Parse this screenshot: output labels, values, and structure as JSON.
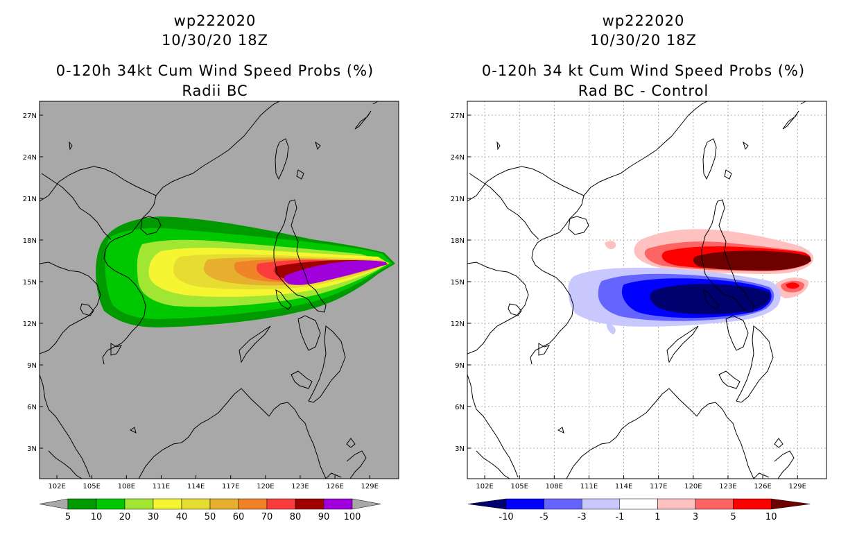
{
  "left_panel": {
    "storm_id": "wp222020",
    "datetime": "10/30/20 18Z",
    "title": "0-120h 34kt Cum Wind Speed Probs (%)",
    "subtitle": "Radii BC",
    "colorbar": {
      "labels": [
        "5",
        "10",
        "20",
        "30",
        "40",
        "50",
        "60",
        "70",
        "80",
        "90",
        "100"
      ],
      "colors": [
        "#009a00",
        "#00c800",
        "#a0e632",
        "#f5f532",
        "#e6dc32",
        "#e6af2d",
        "#f08228",
        "#fa3c3c",
        "#a00000",
        "#a000dc"
      ]
    }
  },
  "right_panel": {
    "storm_id": "wp222020",
    "datetime": "10/30/20 18Z",
    "title": "0-120h 34 kt Cum Wind Speed Probs (%)",
    "subtitle": "Rad BC - Control",
    "colorbar": {
      "labels": [
        "-10",
        "-5",
        "-3",
        "-1",
        "1",
        "3",
        "5",
        "10"
      ],
      "colors": [
        "#00006e",
        "#0000ff",
        "#6464ff",
        "#c8c8ff",
        "#ffffff",
        "#ffc0c0",
        "#ff6464",
        "#ff0000",
        "#6e0000"
      ]
    }
  },
  "map": {
    "lon_labels": [
      "102E",
      "105E",
      "108E",
      "111E",
      "114E",
      "117E",
      "120E",
      "123E",
      "126E",
      "129E"
    ],
    "lat_labels": [
      "27N",
      "24N",
      "21N",
      "18N",
      "15N",
      "12N",
      "9N",
      "6N",
      "3N"
    ],
    "lon_values": [
      102,
      105,
      108,
      111,
      114,
      117,
      120,
      123,
      126,
      129
    ],
    "lat_values": [
      27,
      24,
      21,
      18,
      15,
      12,
      9,
      6,
      3
    ],
    "lon_range": [
      100.5,
      131.5
    ],
    "lat_range": [
      0.8,
      28.0
    ]
  },
  "colors": {
    "left_background": "#a8a8a8",
    "right_background": "#ffffff",
    "coast": "#000000",
    "grid": "#9a9a9a"
  }
}
